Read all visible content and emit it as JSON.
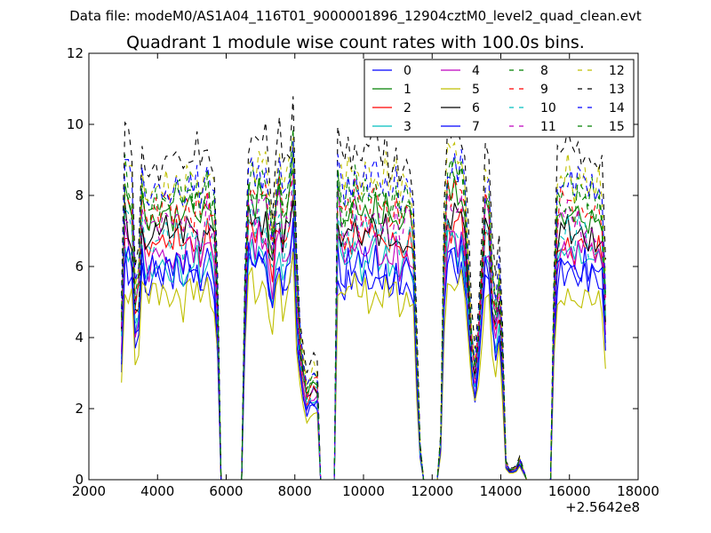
{
  "header": {
    "suptitle": "Data file: modeM0/AS1A04_116T01_9000001896_12904cztM0_level2_quad_clean.evt"
  },
  "chart_data": {
    "type": "line",
    "title": "Quadrant 1 module wise count rates with 100.0s bins.",
    "xlabel": "",
    "ylabel": "",
    "x_offset_text": "+2.5642e8",
    "xlim": [
      2000,
      18000
    ],
    "ylim": [
      0,
      12
    ],
    "xticks": [
      2000,
      4000,
      6000,
      8000,
      10000,
      12000,
      14000,
      16000,
      18000
    ],
    "yticks": [
      0,
      2,
      4,
      6,
      8,
      10,
      12
    ],
    "grid": false,
    "legend_position": "top-right",
    "legend_columns": 4,
    "bin_seconds": 100,
    "x_start": 2950,
    "x_end": 17050,
    "base_rate_series": {
      "name": "6",
      "points": [
        [
          2950,
          4.0
        ],
        [
          3050,
          7.5
        ],
        [
          3150,
          7.2
        ],
        [
          3250,
          6.9
        ],
        [
          3350,
          4.6
        ],
        [
          3450,
          5.0
        ],
        [
          3550,
          7.3
        ],
        [
          3650,
          6.8
        ],
        [
          3750,
          6.5
        ],
        [
          3850,
          6.9
        ],
        [
          3950,
          7.0
        ],
        [
          4050,
          6.6
        ],
        [
          4150,
          6.9
        ],
        [
          4250,
          7.1
        ],
        [
          4350,
          6.8
        ],
        [
          4450,
          6.6
        ],
        [
          4550,
          7.2
        ],
        [
          4650,
          6.9
        ],
        [
          4750,
          6.5
        ],
        [
          4850,
          7.0
        ],
        [
          4950,
          7.1
        ],
        [
          5050,
          6.7
        ],
        [
          5150,
          7.2
        ],
        [
          5250,
          6.6
        ],
        [
          5350,
          6.9
        ],
        [
          5450,
          7.3
        ],
        [
          5550,
          6.8
        ],
        [
          5650,
          6.7
        ],
        [
          5750,
          4.5
        ],
        [
          5850,
          0.0
        ],
        [
          5950,
          0.0
        ],
        [
          6450,
          0.0
        ],
        [
          6550,
          4.8
        ],
        [
          6650,
          7.3
        ],
        [
          6750,
          7.5
        ],
        [
          6850,
          7.0
        ],
        [
          6950,
          7.6
        ],
        [
          7050,
          7.1
        ],
        [
          7150,
          7.3
        ],
        [
          7250,
          6.6
        ],
        [
          7350,
          5.8
        ],
        [
          7450,
          6.9
        ],
        [
          7550,
          7.5
        ],
        [
          7650,
          6.5
        ],
        [
          7750,
          6.9
        ],
        [
          7850,
          7.2
        ],
        [
          7950,
          8.2
        ],
        [
          8050,
          5.0
        ],
        [
          8150,
          3.5
        ],
        [
          8250,
          2.8
        ],
        [
          8350,
          2.2
        ],
        [
          8450,
          2.4
        ],
        [
          8550,
          2.6
        ],
        [
          8650,
          2.5
        ],
        [
          8750,
          0.0
        ],
        [
          9150,
          0.0
        ],
        [
          9250,
          7.4
        ],
        [
          9350,
          6.9
        ],
        [
          9450,
          6.6
        ],
        [
          9550,
          7.1
        ],
        [
          9650,
          6.8
        ],
        [
          9750,
          7.3
        ],
        [
          9850,
          7.0
        ],
        [
          9950,
          6.8
        ],
        [
          10050,
          7.2
        ],
        [
          10150,
          6.9
        ],
        [
          10250,
          7.1
        ],
        [
          10350,
          7.3
        ],
        [
          10450,
          6.8
        ],
        [
          10550,
          6.9
        ],
        [
          10650,
          7.2
        ],
        [
          10750,
          6.6
        ],
        [
          10850,
          6.9
        ],
        [
          10950,
          7.1
        ],
        [
          11050,
          6.5
        ],
        [
          11150,
          6.8
        ],
        [
          11250,
          7.0
        ],
        [
          11350,
          6.9
        ],
        [
          11450,
          6.2
        ],
        [
          11550,
          3.3
        ],
        [
          11650,
          0.8
        ],
        [
          11750,
          0.0
        ],
        [
          12150,
          0.0
        ],
        [
          12250,
          1.0
        ],
        [
          12350,
          6.0
        ],
        [
          12450,
          7.5
        ],
        [
          12550,
          7.4
        ],
        [
          12650,
          7.6
        ],
        [
          12750,
          7.2
        ],
        [
          12850,
          7.5
        ],
        [
          12950,
          6.8
        ],
        [
          13050,
          5.4
        ],
        [
          13150,
          3.6
        ],
        [
          13250,
          2.8
        ],
        [
          13350,
          3.8
        ],
        [
          13450,
          5.2
        ],
        [
          13550,
          7.2
        ],
        [
          13650,
          6.8
        ],
        [
          13750,
          5.0
        ],
        [
          13850,
          4.2
        ],
        [
          13950,
          5.0
        ],
        [
          14050,
          3.2
        ],
        [
          14150,
          0.4
        ],
        [
          14250,
          0.25
        ],
        [
          14350,
          0.25
        ],
        [
          14450,
          0.3
        ],
        [
          14550,
          0.5
        ],
        [
          14650,
          0.25
        ],
        [
          14750,
          0.0
        ],
        [
          15450,
          0.0
        ],
        [
          15550,
          4.5
        ],
        [
          15650,
          6.8
        ],
        [
          15750,
          7.1
        ],
        [
          15850,
          6.9
        ],
        [
          15950,
          7.2
        ],
        [
          16050,
          7.0
        ],
        [
          16150,
          6.7
        ],
        [
          16250,
          7.2
        ],
        [
          16350,
          6.9
        ],
        [
          16450,
          7.1
        ],
        [
          16550,
          6.8
        ],
        [
          16650,
          7.0
        ],
        [
          16750,
          6.7
        ],
        [
          16850,
          6.9
        ],
        [
          16950,
          6.6
        ],
        [
          17050,
          4.5
        ]
      ]
    },
    "series": [
      {
        "name": "0",
        "color": "#0000ff",
        "style": "solid",
        "scale": 0.82
      },
      {
        "name": "1",
        "color": "#008000",
        "style": "solid",
        "scale": 1.08
      },
      {
        "name": "2",
        "color": "#ff0000",
        "style": "solid",
        "scale": 0.96
      },
      {
        "name": "3",
        "color": "#00bfbf",
        "style": "solid",
        "scale": 0.88
      },
      {
        "name": "4",
        "color": "#bf00bf",
        "style": "solid",
        "scale": 0.92
      },
      {
        "name": "5",
        "color": "#bfbf00",
        "style": "solid",
        "scale": 0.74
      },
      {
        "name": "6",
        "color": "#000000",
        "style": "solid",
        "scale": 1.0
      },
      {
        "name": "7",
        "color": "#0000ff",
        "style": "solid",
        "scale": 0.86
      },
      {
        "name": "8",
        "color": "#008000",
        "style": "dashed",
        "scale": 1.16
      },
      {
        "name": "9",
        "color": "#ff0000",
        "style": "dashed",
        "scale": 1.1
      },
      {
        "name": "10",
        "color": "#00bfbf",
        "style": "dashed",
        "scale": 0.98
      },
      {
        "name": "11",
        "color": "#bf00bf",
        "style": "dashed",
        "scale": 1.04
      },
      {
        "name": "12",
        "color": "#bfbf00",
        "style": "dashed",
        "scale": 1.22
      },
      {
        "name": "13",
        "color": "#000000",
        "style": "dashed",
        "scale": 1.32
      },
      {
        "name": "14",
        "color": "#0000ff",
        "style": "dashed",
        "scale": 1.2
      },
      {
        "name": "15",
        "color": "#008000",
        "style": "dashed",
        "scale": 1.13
      }
    ]
  }
}
